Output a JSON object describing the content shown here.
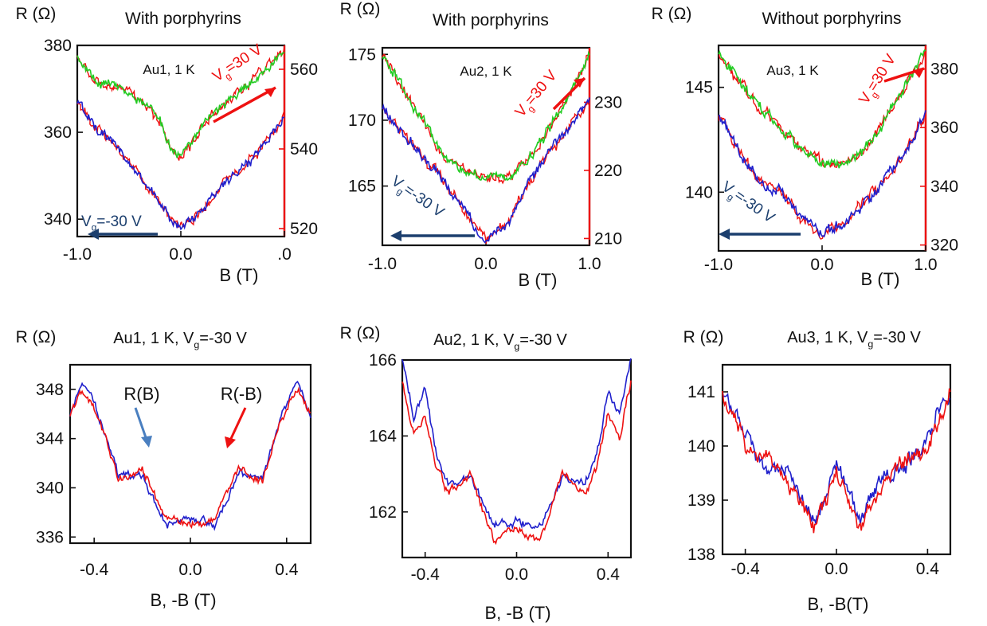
{
  "colors": {
    "green": "#22cc22",
    "blue": "#2020cc",
    "red": "#ee1111",
    "navy": "#1c3f6e",
    "steel": "#4a7fc0"
  },
  "chart_data": [
    {
      "id": "au1-top",
      "type": "line",
      "title": "With porphyrins",
      "ylabel": "R (Ω)",
      "xlabel": "B (T)",
      "inset": "Au1, 1 K",
      "xlim": [
        -1.0,
        1.0
      ],
      "ylim": [
        336,
        380
      ],
      "y2lim": [
        518,
        566
      ],
      "xticks": [
        "-1.0",
        "0.0",
        ".0"
      ],
      "yticks": [
        340,
        360,
        380
      ],
      "y2ticks": [
        520,
        540,
        560
      ],
      "annotations": {
        "pos_gate": "V_g=30 V",
        "neg_gate": "V_g=-30 V"
      },
      "series": [
        {
          "color": "green",
          "axis": "right",
          "x": [
            -1.0,
            -0.8,
            -0.6,
            -0.4,
            -0.2,
            -0.1,
            0.0,
            0.1,
            0.2,
            0.4,
            0.6,
            0.8,
            1.0
          ],
          "y": [
            564,
            556,
            556,
            552,
            547,
            540,
            538,
            541,
            546,
            551,
            555,
            560,
            565
          ]
        },
        {
          "color": "blue",
          "axis": "left",
          "x": [
            -1.0,
            -0.8,
            -0.6,
            -0.4,
            -0.2,
            -0.1,
            0.0,
            0.1,
            0.2,
            0.4,
            0.6,
            0.8,
            1.0
          ],
          "y": [
            367,
            361,
            356,
            350,
            344,
            340,
            338,
            340,
            342,
            348,
            352,
            357,
            364
          ]
        }
      ]
    },
    {
      "id": "au2-top",
      "type": "line",
      "title": "With porphyrins",
      "ylabel": "R (Ω)",
      "xlabel": "B (T)",
      "inset": "Au2, 1 K",
      "xlim": [
        -1.0,
        1.0
      ],
      "ylim": [
        160.5,
        175.5
      ],
      "y2lim": [
        209,
        238
      ],
      "xticks": [
        "-1.0",
        "0.0",
        "1.0"
      ],
      "yticks": [
        165,
        170,
        175
      ],
      "y2ticks": [
        210,
        220,
        230
      ],
      "annotations": {
        "pos_gate": "V_g=30 V",
        "neg_gate": "V_g=-30 V"
      },
      "series": [
        {
          "color": "green",
          "axis": "right",
          "x": [
            -1.0,
            -0.8,
            -0.6,
            -0.4,
            -0.2,
            0.0,
            0.2,
            0.4,
            0.6,
            0.8,
            1.0
          ],
          "y": [
            237,
            232,
            227,
            222,
            220,
            219,
            219,
            221,
            226,
            231,
            237
          ]
        },
        {
          "color": "blue",
          "axis": "left",
          "x": [
            -1.0,
            -0.8,
            -0.6,
            -0.4,
            -0.2,
            0.0,
            0.2,
            0.4,
            0.6,
            0.8,
            1.0
          ],
          "y": [
            171,
            169,
            167,
            165.5,
            163,
            161,
            162,
            165,
            167.5,
            169.5,
            171.5
          ]
        }
      ]
    },
    {
      "id": "au3-top",
      "type": "line",
      "title": "Without porphyrins",
      "ylabel": "R (Ω)",
      "xlabel": "B (T)",
      "inset": "Au3, 1 K",
      "xlim": [
        -1.0,
        1.0
      ],
      "ylim": [
        137.2,
        147
      ],
      "y2lim": [
        318,
        388
      ],
      "xticks": [
        "-1.0",
        "0.0",
        "1.0"
      ],
      "yticks": [
        140,
        145
      ],
      "y2ticks": [
        320,
        340,
        360,
        380
      ],
      "annotations": {
        "pos_gate": "V_g=30 V",
        "neg_gate": "V_g=-30 V"
      },
      "series": [
        {
          "color": "green",
          "axis": "right",
          "x": [
            -1.0,
            -0.8,
            -0.6,
            -0.4,
            -0.2,
            0.0,
            0.2,
            0.4,
            0.6,
            0.8,
            1.0
          ],
          "y": [
            386,
            376,
            367,
            360,
            352,
            348,
            347,
            352,
            362,
            374,
            386
          ]
        },
        {
          "color": "blue",
          "axis": "left",
          "x": [
            -1.0,
            -0.8,
            -0.6,
            -0.4,
            -0.2,
            0.0,
            0.2,
            0.4,
            0.6,
            0.8,
            1.0
          ],
          "y": [
            143.8,
            142,
            140.5,
            140,
            138.8,
            138,
            138.5,
            139.5,
            140.5,
            142,
            143.8
          ]
        }
      ]
    },
    {
      "id": "au1-bottom",
      "type": "line",
      "title": "Au1, 1 K, V_g=-30 V",
      "ylabel": "R (Ω)",
      "xlabel": "B, -B (T)",
      "xlim": [
        -0.5,
        0.5
      ],
      "ylim": [
        335.5,
        350
      ],
      "xticks": [
        "-0.4",
        "0.0",
        "0.4"
      ],
      "yticks": [
        336,
        340,
        344,
        348
      ],
      "annotations": {
        "rb": "R(B)",
        "rmb": "R(-B)"
      },
      "series": [
        {
          "name": "R(B)",
          "color": "blue",
          "x": [
            -0.5,
            -0.45,
            -0.4,
            -0.35,
            -0.3,
            -0.2,
            -0.1,
            0.0,
            0.1,
            0.2,
            0.3,
            0.35,
            0.4,
            0.45,
            0.5
          ],
          "y": [
            346,
            348.5,
            347,
            344,
            341,
            341,
            337,
            337.5,
            337,
            341,
            341,
            344,
            347,
            348.5,
            346
          ]
        },
        {
          "name": "R(-B)",
          "color": "red",
          "x": [
            -0.5,
            -0.45,
            -0.4,
            -0.35,
            -0.3,
            -0.2,
            -0.1,
            0.0,
            0.1,
            0.2,
            0.3,
            0.35,
            0.4,
            0.45,
            0.5
          ],
          "y": [
            346,
            348,
            346.5,
            344,
            340.5,
            341.5,
            337.5,
            337,
            337.5,
            341.5,
            340.5,
            344,
            346.5,
            348,
            346
          ]
        }
      ]
    },
    {
      "id": "au2-bottom",
      "type": "line",
      "title": "Au2, 1 K, V_g=-30 V",
      "ylabel": "R (Ω)",
      "xlabel": "B, -B (T)",
      "xlim": [
        -0.5,
        0.5
      ],
      "ylim": [
        160.8,
        166
      ],
      "xticks": [
        "-0.4",
        "0.0",
        "0.4"
      ],
      "yticks": [
        162,
        164,
        166
      ],
      "series": [
        {
          "name": "R(B)",
          "color": "blue",
          "x": [
            -0.5,
            -0.45,
            -0.4,
            -0.35,
            -0.3,
            -0.2,
            -0.1,
            0.0,
            0.1,
            0.2,
            0.3,
            0.35,
            0.4,
            0.45,
            0.5
          ],
          "y": [
            166,
            164.5,
            165.2,
            163.5,
            162.8,
            162.9,
            161.6,
            161.8,
            161.6,
            162.9,
            162.8,
            163.5,
            165.2,
            164.5,
            166
          ]
        },
        {
          "name": "R(-B)",
          "color": "red",
          "x": [
            -0.5,
            -0.45,
            -0.4,
            -0.35,
            -0.3,
            -0.2,
            -0.1,
            0.0,
            0.1,
            0.2,
            0.3,
            0.35,
            0.4,
            0.45,
            0.5
          ],
          "y": [
            165.5,
            164,
            164.6,
            163.2,
            162.5,
            163,
            161.2,
            161.6,
            161.2,
            163,
            162.5,
            163.2,
            164.6,
            164,
            165.5
          ]
        }
      ]
    },
    {
      "id": "au3-bottom",
      "type": "line",
      "title": "Au3, 1 K, V_g=-30 V",
      "ylabel": "R (Ω)",
      "xlabel": "B, -B(T)",
      "xlim": [
        -0.5,
        0.5
      ],
      "ylim": [
        138,
        141.5
      ],
      "xticks": [
        "-0.4",
        "0.0",
        "0.4"
      ],
      "yticks": [
        138,
        139,
        140,
        141
      ],
      "series": [
        {
          "name": "R(B)",
          "color": "blue",
          "x": [
            -0.5,
            -0.4,
            -0.3,
            -0.2,
            -0.1,
            0.0,
            0.1,
            0.2,
            0.3,
            0.4,
            0.5
          ],
          "y": [
            141,
            140.2,
            139.6,
            139.4,
            138.6,
            139.7,
            138.6,
            139.4,
            139.6,
            140.2,
            141
          ]
        },
        {
          "name": "R(-B)",
          "color": "red",
          "x": [
            -0.5,
            -0.4,
            -0.3,
            -0.2,
            -0.1,
            0.0,
            0.1,
            0.2,
            0.3,
            0.4,
            0.5
          ],
          "y": [
            141,
            140,
            139.8,
            139.2,
            138.5,
            139.5,
            138.5,
            139.2,
            139.8,
            140,
            141
          ]
        }
      ]
    }
  ]
}
